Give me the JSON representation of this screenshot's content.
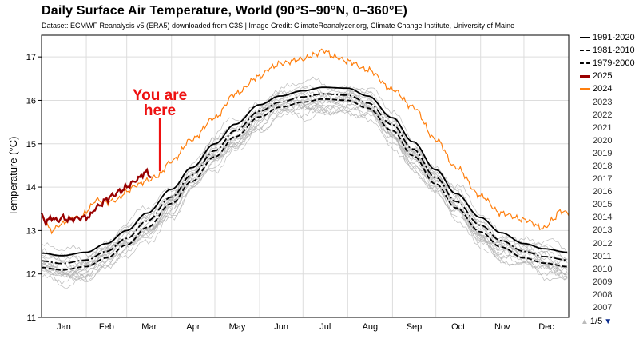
{
  "title": "Daily Surface Air Temperature, World (90°S–90°N, 0–360°E)",
  "credit": "Dataset: ECMWF Reanalysis v5 (ERA5) downloaded from C3S | Image Credit: ClimateReanalyzer.org, Climate Change Institute, University of Maine",
  "annotation": {
    "line1": "You are",
    "line2": "here",
    "color": "#ee1111"
  },
  "legend_items": [
    {
      "label": "1991-2020",
      "color": "#000000",
      "style": "solid"
    },
    {
      "label": "1981-2010",
      "color": "#000000",
      "style": "dashdot"
    },
    {
      "label": "1979-2000",
      "color": "#000000",
      "style": "dashed"
    },
    {
      "label": "2025",
      "color": "#990000",
      "style": "solid"
    },
    {
      "label": "2024",
      "color": "#ff7f0e",
      "style": "solid"
    },
    {
      "label": "2023",
      "color": "",
      "style": "none"
    },
    {
      "label": "2022",
      "color": "",
      "style": "none"
    },
    {
      "label": "2021",
      "color": "",
      "style": "none"
    },
    {
      "label": "2020",
      "color": "",
      "style": "none"
    },
    {
      "label": "2019",
      "color": "",
      "style": "none"
    },
    {
      "label": "2018",
      "color": "",
      "style": "none"
    },
    {
      "label": "2017",
      "color": "",
      "style": "none"
    },
    {
      "label": "2016",
      "color": "",
      "style": "none"
    },
    {
      "label": "2015",
      "color": "",
      "style": "none"
    },
    {
      "label": "2014",
      "color": "",
      "style": "none"
    },
    {
      "label": "2013",
      "color": "",
      "style": "none"
    },
    {
      "label": "2012",
      "color": "",
      "style": "none"
    },
    {
      "label": "2011",
      "color": "",
      "style": "none"
    },
    {
      "label": "2010",
      "color": "",
      "style": "none"
    },
    {
      "label": "2009",
      "color": "",
      "style": "none"
    },
    {
      "label": "2008",
      "color": "",
      "style": "none"
    },
    {
      "label": "2007",
      "color": "",
      "style": "none"
    }
  ],
  "pager": {
    "text": "1/5"
  },
  "chart_data": {
    "type": "line",
    "ylabel": "Temperature (°C)",
    "ylim": [
      11,
      17.5
    ],
    "xlim": [
      1,
      366
    ],
    "yticks": [
      11,
      12,
      13,
      14,
      15,
      16,
      17
    ],
    "months": [
      "Jan",
      "Feb",
      "Mar",
      "Apr",
      "May",
      "Jun",
      "Jul",
      "Aug",
      "Sep",
      "Oct",
      "Nov",
      "Dec"
    ],
    "grid": true,
    "legend_position": "right",
    "background_years_color": "#b0b0b0",
    "series": [
      {
        "name": "1991-2020",
        "color": "#000000",
        "dash": "solid",
        "x": [
          1,
          15,
          32,
          46,
          60,
          74,
          91,
          105,
          121,
          135,
          152,
          166,
          182,
          196,
          213,
          227,
          244,
          258,
          274,
          288,
          305,
          319,
          335,
          349,
          365
        ],
        "values": [
          12.48,
          12.42,
          12.5,
          12.7,
          13.0,
          13.4,
          13.95,
          14.45,
          15.0,
          15.45,
          15.9,
          16.1,
          16.22,
          16.3,
          16.28,
          16.1,
          15.6,
          15.05,
          14.4,
          13.85,
          13.3,
          12.95,
          12.7,
          12.58,
          12.5
        ]
      },
      {
        "name": "1981-2010",
        "color": "#000000",
        "dash": "dashdot",
        "x": [
          1,
          15,
          32,
          46,
          60,
          74,
          91,
          105,
          121,
          135,
          152,
          166,
          182,
          196,
          213,
          227,
          244,
          258,
          274,
          288,
          305,
          319,
          335,
          349,
          365
        ],
        "values": [
          12.3,
          12.24,
          12.32,
          12.52,
          12.82,
          13.22,
          13.77,
          14.28,
          14.84,
          15.3,
          15.75,
          15.96,
          16.08,
          16.15,
          16.12,
          15.94,
          15.44,
          14.88,
          14.22,
          13.67,
          13.12,
          12.77,
          12.52,
          12.4,
          12.32
        ]
      },
      {
        "name": "1979-2000",
        "color": "#000000",
        "dash": "dashed",
        "x": [
          1,
          15,
          32,
          46,
          60,
          74,
          91,
          105,
          121,
          135,
          152,
          166,
          182,
          196,
          213,
          227,
          244,
          258,
          274,
          288,
          305,
          319,
          335,
          349,
          365
        ],
        "values": [
          12.15,
          12.09,
          12.17,
          12.37,
          12.67,
          13.07,
          13.62,
          14.13,
          14.7,
          15.16,
          15.62,
          15.84,
          15.96,
          16.03,
          16.0,
          15.82,
          15.3,
          14.73,
          14.07,
          13.52,
          12.97,
          12.62,
          12.37,
          12.25,
          12.17
        ]
      },
      {
        "name": "2024",
        "color": "#ff7f0e",
        "dash": "solid",
        "x": [
          1,
          8,
          15,
          22,
          29,
          32,
          39,
          46,
          53,
          60,
          67,
          74,
          81,
          91,
          105,
          121,
          135,
          152,
          160,
          166,
          182,
          190,
          196,
          204,
          213,
          227,
          244,
          258,
          274,
          288,
          305,
          319,
          335,
          349,
          355,
          360,
          366
        ],
        "values": [
          13.3,
          13.0,
          13.15,
          13.3,
          13.3,
          13.45,
          13.7,
          13.65,
          13.7,
          13.9,
          14.05,
          14.15,
          14.25,
          14.6,
          15.1,
          15.6,
          16.15,
          16.55,
          16.75,
          16.85,
          16.95,
          17.05,
          17.15,
          17.0,
          16.9,
          16.7,
          16.25,
          15.85,
          15.1,
          14.45,
          13.8,
          13.4,
          13.25,
          13.05,
          13.25,
          13.45,
          13.4
        ]
      },
      {
        "name": "2025",
        "color": "#990000",
        "dash": "solid",
        "x": [
          1,
          4,
          8,
          12,
          15,
          20,
          25,
          30,
          34,
          38,
          42,
          46,
          50,
          55,
          60,
          64,
          68,
          73,
          77
        ],
        "values": [
          13.35,
          13.2,
          13.3,
          13.22,
          13.3,
          13.25,
          13.28,
          13.3,
          13.32,
          13.5,
          13.6,
          13.72,
          13.8,
          13.9,
          14.0,
          14.1,
          14.2,
          14.35,
          14.25
        ]
      }
    ],
    "background_years": [
      {
        "name": "2023",
        "offset": 0.25,
        "phase": 0.3
      },
      {
        "name": "2022",
        "offset": -0.05,
        "phase": 1.1
      },
      {
        "name": "2021",
        "offset": -0.1,
        "phase": 2.2
      },
      {
        "name": "2020",
        "offset": 0.1,
        "phase": 0.7
      },
      {
        "name": "2019",
        "offset": 0.05,
        "phase": 1.9
      },
      {
        "name": "2018",
        "offset": -0.08,
        "phase": 2.8
      },
      {
        "name": "2017",
        "offset": 0.02,
        "phase": 0.2
      },
      {
        "name": "2016",
        "offset": 0.12,
        "phase": 1.4
      },
      {
        "name": "2015",
        "offset": -0.12,
        "phase": 2.5
      },
      {
        "name": "2014",
        "offset": -0.2,
        "phase": 0.9
      },
      {
        "name": "2013",
        "offset": -0.22,
        "phase": 1.7
      },
      {
        "name": "2012",
        "offset": -0.25,
        "phase": 3.0
      },
      {
        "name": "2011",
        "offset": -0.3,
        "phase": 0.4
      },
      {
        "name": "2010",
        "offset": -0.15,
        "phase": 2.0
      },
      {
        "name": "2009",
        "offset": -0.28,
        "phase": 1.3
      },
      {
        "name": "2008",
        "offset": -0.38,
        "phase": 2.6
      },
      {
        "name": "2007",
        "offset": -0.33,
        "phase": 0.6
      }
    ]
  }
}
